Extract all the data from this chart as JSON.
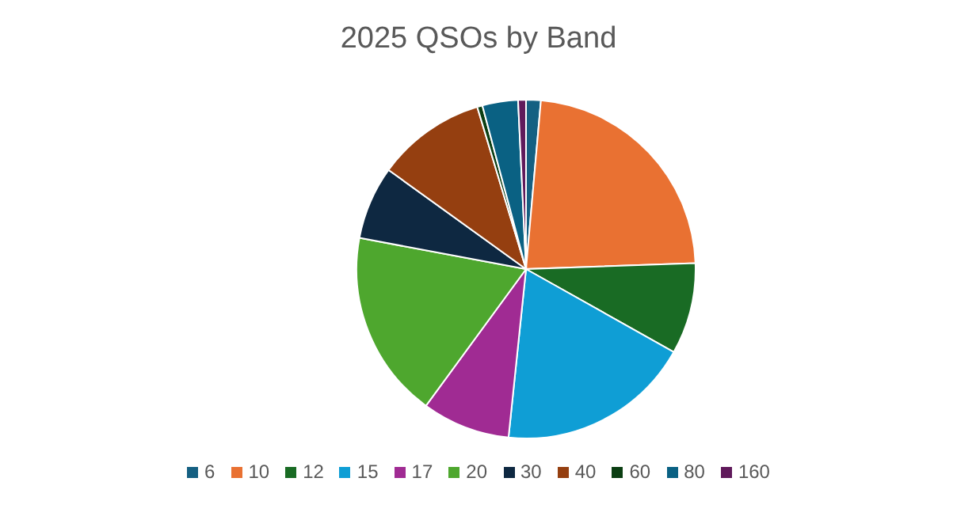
{
  "chart_data": {
    "type": "pie",
    "title": "2025 QSOs by Band",
    "categories": [
      "6",
      "10",
      "12",
      "15",
      "17",
      "20",
      "30",
      "40",
      "60",
      "80",
      "160"
    ],
    "values": [
      1.4,
      23.05,
      8.7,
      18.5,
      8.4,
      17.9,
      7,
      10.4,
      0.5,
      3.4,
      0.75
    ],
    "colors": [
      "#156082",
      "#e97132",
      "#196b24",
      "#0f9ed5",
      "#a02b93",
      "#4ea72e",
      "#0e2841",
      "#953f10",
      "#0b3e12",
      "#0a6183",
      "#601a5b"
    ],
    "legend": "bottom"
  }
}
